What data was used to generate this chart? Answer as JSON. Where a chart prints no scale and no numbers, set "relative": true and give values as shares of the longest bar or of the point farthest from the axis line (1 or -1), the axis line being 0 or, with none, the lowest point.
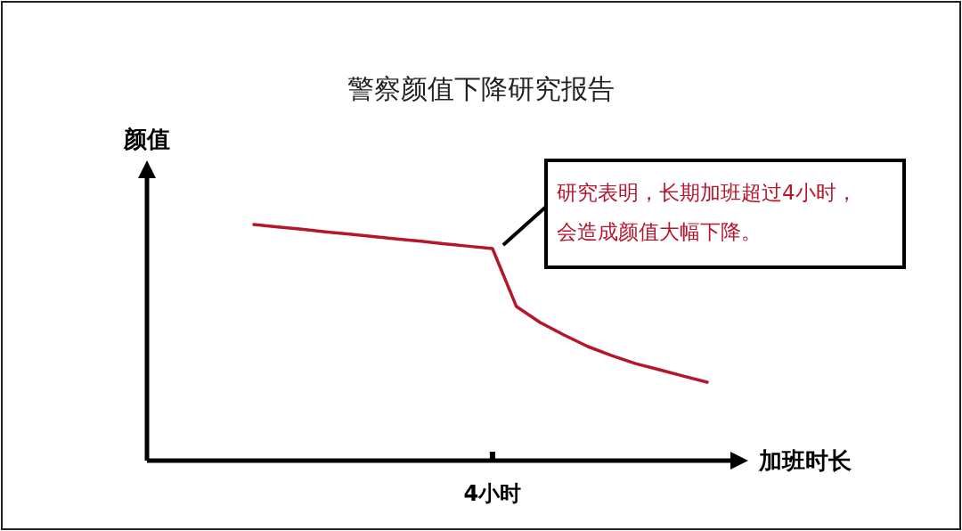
{
  "chart_data": {
    "type": "line",
    "title": "警察颜值下降研究报告",
    "xlabel": "加班时长",
    "ylabel": "颜值",
    "relative": true,
    "categories": [
      null,
      null,
      null,
      null,
      null,
      null,
      null,
      null,
      null,
      null,
      null,
      null,
      null,
      null,
      null,
      null,
      null,
      null,
      null,
      null
    ],
    "series": [
      {
        "color": "#b5162b",
        "values": [
          1,
          0.99,
          0.98,
          0.969,
          0.959,
          0.949,
          0.939,
          0.929,
          0.918,
          0.908,
          0.898,
          0.653,
          0.585,
          0.532,
          0.483,
          0.445,
          0.411,
          0.385,
          0.358,
          0.332
        ]
      }
    ],
    "annotations": [
      "研究表明，长期加班超过4小时，会造成颜值大幅下降。",
      "4小时"
    ]
  }
}
